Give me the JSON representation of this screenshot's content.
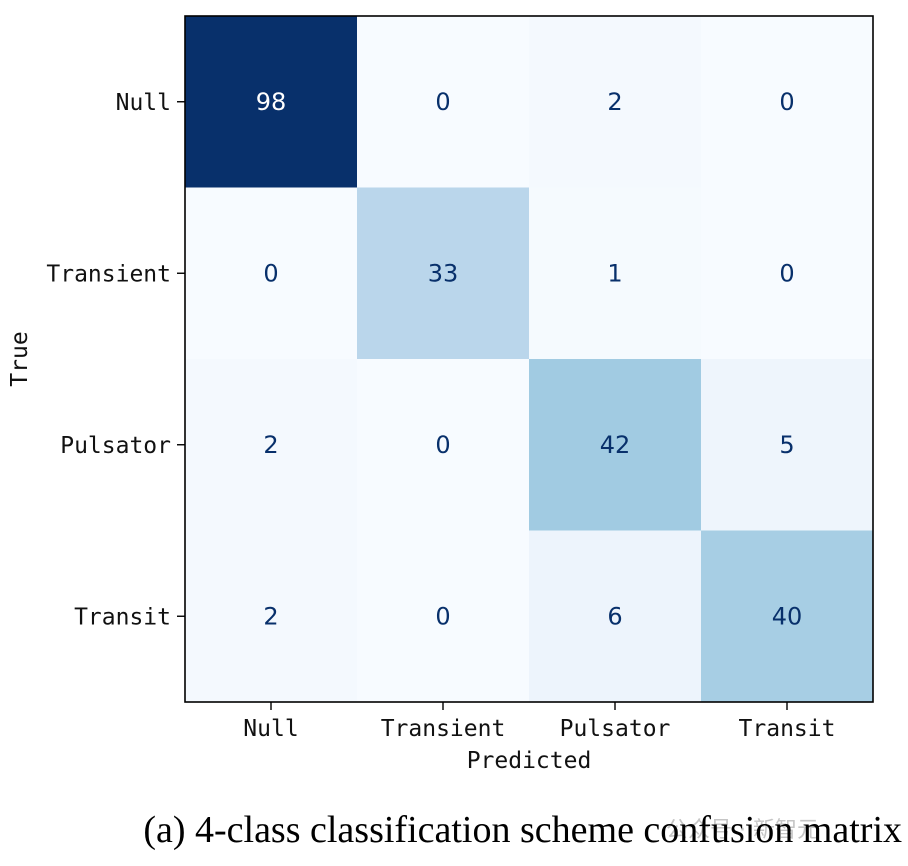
{
  "chart_data": {
    "type": "heatmap",
    "rows": [
      "Null",
      "Transient",
      "Pulsator",
      "Transit"
    ],
    "columns": [
      "Null",
      "Transient",
      "Pulsator",
      "Transit"
    ],
    "values": [
      [
        98,
        0,
        2,
        0
      ],
      [
        0,
        33,
        1,
        0
      ],
      [
        2,
        0,
        42,
        5
      ],
      [
        2,
        0,
        6,
        40
      ]
    ],
    "xlabel": "Predicted",
    "ylabel": "True",
    "colormap": "Blues",
    "vmin": 0,
    "vmax": 98,
    "light_text_color": "#ffffff",
    "dark_text_color": "#08306b"
  },
  "caption": "(a) 4-class classification scheme confusion matrix",
  "watermark": "公众号 · 新智元"
}
